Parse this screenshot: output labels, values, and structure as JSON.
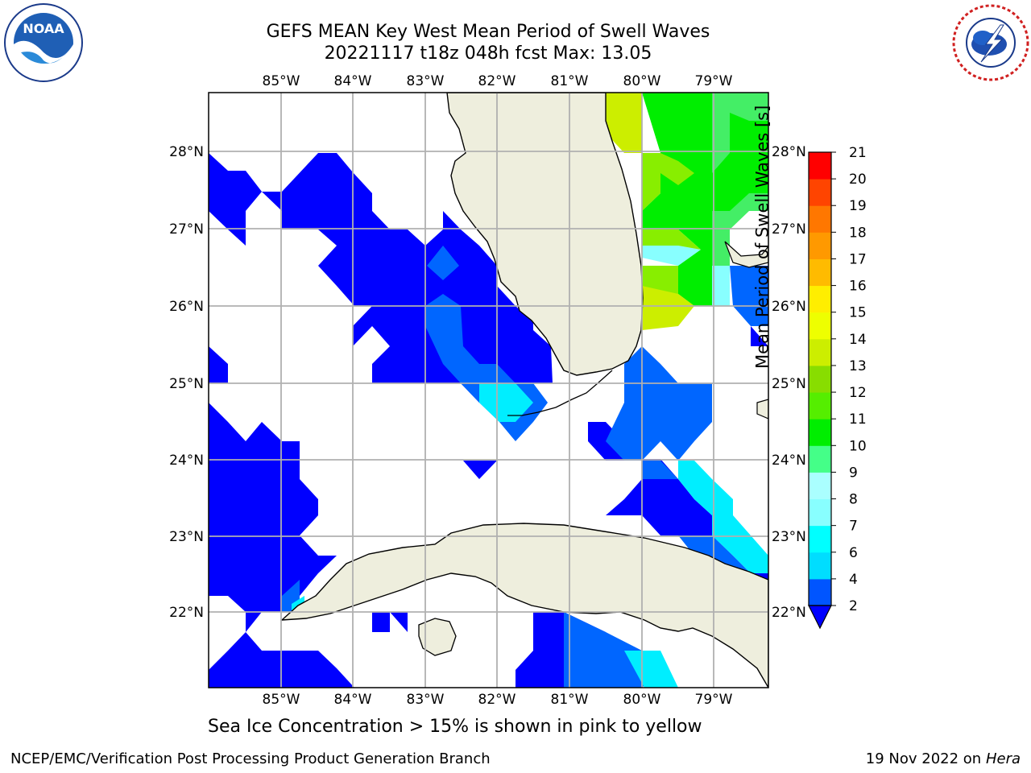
{
  "title": {
    "line1": "GEFS MEAN Key West Mean Period of Swell Waves",
    "line2": "20221117 t18z 048h fcst   Max: 13.05"
  },
  "logos": {
    "left": {
      "icon": "noaa-logo",
      "text": "NOAA",
      "ring_text": "NATIONAL OCEANIC AND ATMOSPHERIC ADMINISTRATION · U.S. DEPARTMENT OF COMMERCE"
    },
    "right": {
      "icon": "nws-logo",
      "ring_text": "NATIONAL WEATHER SERVICE"
    }
  },
  "map": {
    "lon_labels": [
      "85°W",
      "84°W",
      "83°W",
      "82°W",
      "81°W",
      "80°W",
      "79°W"
    ],
    "lat_labels": [
      "28°N",
      "27°N",
      "26°N",
      "25°N",
      "24°N",
      "23°N",
      "22°N"
    ],
    "colors": {
      "land": "#eeeedd",
      "water": "#ffffff",
      "grid": "#b0b0b0",
      "coast": "#000000"
    }
  },
  "colorbar": {
    "label": "Mean Period of Swell Waves [s]",
    "ticks": [
      "2",
      "4",
      "6",
      "7",
      "8",
      "9",
      "10",
      "11",
      "12",
      "13",
      "14",
      "15",
      "16",
      "17",
      "18",
      "19",
      "20",
      "21"
    ],
    "colors": [
      "#0000ff",
      "#0055ff",
      "#00ddff",
      "#00ffff",
      "#88ffff",
      "#aaffff",
      "#44ff88",
      "#00ee00",
      "#55ee00",
      "#88dd00",
      "#ccee00",
      "#eeff00",
      "#ffee00",
      "#ffbb00",
      "#ff9900",
      "#ff7700",
      "#ff4400",
      "#ff0000"
    ]
  },
  "caption": "Sea Ice Concentration > 15% is shown in pink to yellow",
  "footer": {
    "left": "NCEP/EMC/Verification Post Processing Product Generation Branch",
    "right_date": "19 Nov 2022 on",
    "right_host": "Hera"
  }
}
